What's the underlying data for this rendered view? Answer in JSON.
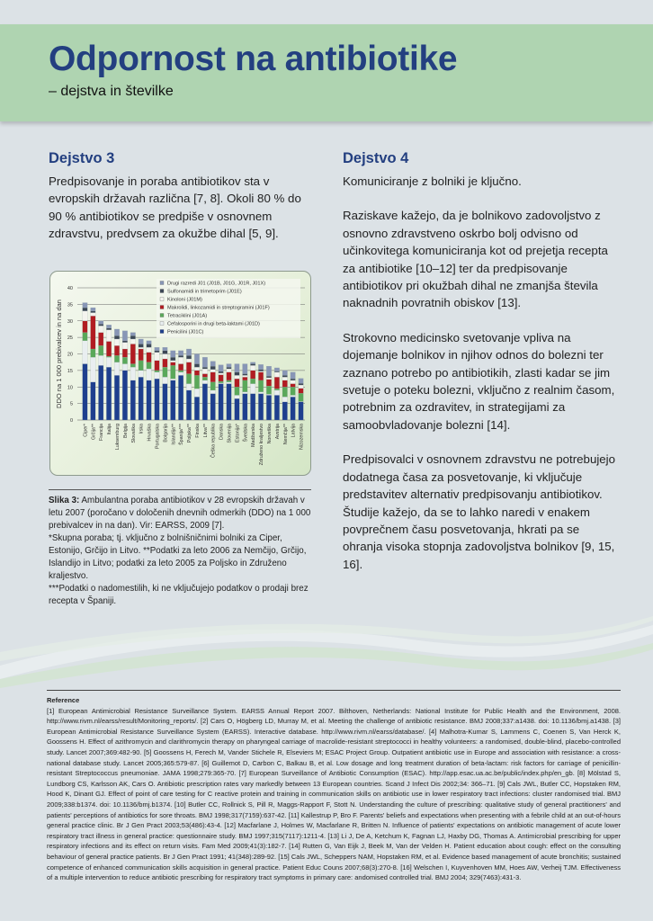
{
  "header": {
    "title": "Odpornost na antibiotike",
    "subtitle": "– dejstva in številke",
    "band_color": "#afd4b1",
    "title_color": "#233f80"
  },
  "left": {
    "heading": "Dejstvo 3",
    "paragraph": "Predpisovanje in poraba antibiotikov sta v evropskih državah različna [7, 8]. Okoli 80 % do 90 % antibiotikov se predpiše v osnovnem zdravstvu, predvsem za okužbe dihal [5, 9].",
    "caption": {
      "label": "Slika 3:",
      "text": " Ambulantna poraba antibiotikov v 28 evropskih državah v letu 2007 (poročano v določenih dnevnih odmerkih (DDO) na 1 000 prebivalcev in na dan). Vir: EARSS, 2009 [7].",
      "note1": "*Skupna poraba; tj. vključno z bolnišničnimi bolniki za Ciper, Estonijo, Grčijo in Litvo. **Podatki za leto 2006 za Nemčijo, Grčijo, Islandijo in Litvo; podatki za leto 2005 za Poljsko in Združeno kraljestvo.",
      "note2": "***Podatki o nadomestilih, ki ne vključujejo podatkov o prodaji brez recepta v Španiji."
    }
  },
  "right": {
    "heading": "Dejstvo 4",
    "paragraphs": [
      "Komuniciranje z bolniki je ključno.",
      "Raziskave kažejo, da je bolnikovo zadovoljstvo z osnovno zdravstveno oskrbo bolj odvisno od učinkovitega komuniciranja kot od prejetja recepta za antibiotike [10–12] ter da predpisovanje antibiotikov pri okužbah dihal ne zmanjša števila naknadnih povratnih obiskov [13].",
      "Strokovno medicinsko svetovanje vpliva na dojemanje bolnikov in njihov odnos do bolezni ter zaznano potrebo po antibiotikih, zlasti kadar se jim svetuje o poteku bolezni, vključno z realnim časom, potrebnim za ozdravitev, in strategijami za samoobvladovanje bolezni [14].",
      "Predpisovalci v osnovnem zdravstvu ne potrebujejo dodatnega časa za posvetovanje, ki vključuje predstavitev alternativ predpisovanju antibiotikov. Študije kažejo, da se to lahko naredi v enakem povprečnem času posvetovanja, hkrati pa se ohranja visoka stopnja zadovoljstva bolnikov [9, 15, 16]."
    ]
  },
  "references": {
    "heading": "Reference",
    "text": "[1] European Antimicrobial Resistance Surveillance System. EARSS Annual Report 2007. Bilthoven, Netherlands: National Institute for Public Health and the Environment, 2008. http://www.rivm.nl/earss/result/Monitoring_reports/. [2] Cars O, Högberg LD, Murray M, et al. Meeting the challenge of antibiotic resistance. BMJ 2008;337:a1438. doi: 10.1136/bmj.a1438. [3] European Antimicrobial Resistance Surveillance System (EARSS). Interactive database. http://www.rivm.nl/earss/database/. [4] Malhotra-Kumar S, Lammens C, Coenen S, Van Herck K, Goossens H. Effect of azithromycin and clarithromycin therapy on pharyngeal carriage of macrolide-resistant streptococci in healthy volunteers: a randomised, double-blind, placebo-controlled study. Lancet 2007;369:482-90. [5] Goossens H, Ferech M, Vander Stichele R, Elseviers M; ESAC Project Group. Outpatient antibiotic use in Europe and association with resistance: a cross-national database study. Lancet 2005;365:579-87. [6] Guillemot D, Carbon C, Balkau B, et al. Low dosage and long treatment duration of beta-lactam: risk factors for carriage of penicillin-resistant Streptococcus pneumoniae. JAMA 1998;279:365-70. [7] European Surveillance of Antibiotic Consumption (ESAC). http://app.esac.ua.ac.be/public/index.php/en_gb. [8] Mölstad S, Lundborg CS, Karlsson AK, Cars O. Antibiotic prescription rates vary markedly between 13 European countries. Scand J Infect Dis 2002;34: 366–71. [9] Cals JWL, Butler CC, Hopstaken RM, Hood K, Dinant GJ. Effect of point of care testing for C reactive protein and training in communication skills on antibiotic use in lower respiratory tract infections: cluster randomised trial. BMJ 2009;338:b1374. doi: 10.1136/bmj.b1374. [10] Butler CC, Rollnick S, Pill R, Maggs-Rapport F, Stott N. Understanding the culture of prescribing: qualitative study of general practitioners' and patients' perceptions of antibiotics for sore throats. BMJ 1998;317(7159):637-42. [11] Kallestrup P, Bro F. Parents' beliefs and expectations when presenting with a febrile child at an out-of-hours general practice clinic. Br J Gen Pract 2003;53(486):43-4. [12] Macfarlane J, Holmes W, Macfarlane R, Britten N. Influence of patients' expectations on antibiotic management of acute lower respiratory tract illness in general practice: questionnaire study. BMJ 1997;315(7117):1211-4. [13] Li J, De A, Ketchum K, Fagnan LJ, Haxby DG, Thomas A. Antimicrobial prescribing for upper respiratory infections and its effect on return visits. Fam Med 2009;41(3):182-7. [14] Rutten G, Van Eijk J, Beek M, Van der Velden H. Patient education about cough: effect on the consulting behaviour of general practice patients. Br J Gen Pract 1991; 41(348):289-92. [15] Cals JWL, Scheppers NAM, Hopstaken RM, et al. Evidence based management of acute bronchitis; sustained competence of enhanced communication skills acquisition in general practice. Patient Educ Couns 2007;68(3):270-8. [16] Welschen I, Kuyvenhoven MM, Hoes AW, Verheij TJM. Effectiveness of a multiple intervention to reduce antibiotic prescribing for respiratory tract symptoms in primary care: andomised controlled trial. BMJ 2004; 329(7463):431-3."
  },
  "chart_data": {
    "type": "bar",
    "stacked": true,
    "ylabel": "DDO na 1 000 prebivalcev in na dan",
    "ylim": [
      0,
      40
    ],
    "yticks": [
      0,
      5,
      10,
      15,
      20,
      25,
      30,
      35,
      40
    ],
    "grid": true,
    "legend_position": "top-right",
    "categories": [
      "Ciper*",
      "Grčija**",
      "Francija",
      "Italija",
      "Luksemburg",
      "Belgija",
      "Slovaška",
      "Irska",
      "Hrvaška",
      "Portugalska",
      "Bolgarija",
      "Islandija**",
      "Španija***",
      "Poljska**",
      "Finska",
      "Litva**",
      "Češka republika",
      "Danska",
      "Slovenija",
      "Estonija*",
      "Švedska",
      "Madžarska",
      "Združeno kraljestvo",
      "Norveška",
      "Avstrija",
      "Nemčija**",
      "Latvija",
      "Nizozemska"
    ],
    "series": [
      {
        "name": "Penicilini (J01C)",
        "color": "#1e3f8e",
        "values": [
          17,
          11.5,
          16.5,
          16,
          13.5,
          15,
          12,
          13,
          12,
          12.5,
          11,
          12,
          13.5,
          9,
          7,
          11,
          8,
          11,
          11,
          6.5,
          8,
          8,
          8,
          7.5,
          7.5,
          5.5,
          7,
          5.5
        ]
      },
      {
        "name": "Cefalosporini in drugi beta-laktami (J01D)",
        "color": "#e9eef0",
        "values": [
          7,
          7.5,
          3,
          3,
          4,
          2,
          4,
          2,
          3.5,
          2,
          2,
          0.5,
          1,
          2,
          2.5,
          1,
          1,
          0.2,
          0.5,
          1,
          0.5,
          3,
          0.5,
          0.3,
          1.5,
          1.5,
          0.5,
          0.1
        ]
      },
      {
        "name": "Tetraciklini (J01A)",
        "color": "#5aa85a",
        "values": [
          2.5,
          2.5,
          3,
          0.3,
          2,
          2,
          1,
          3,
          2,
          0.5,
          3,
          4,
          0.5,
          3,
          4,
          1,
          2.5,
          0.5,
          0.5,
          2.5,
          3.5,
          1.5,
          3.5,
          2.5,
          0.5,
          3,
          2.5,
          2.5
        ]
      },
      {
        "name": "Makrolidi, linkozamidi in streptogramini (J01F)",
        "color": "#b11c22",
        "values": [
          3.5,
          10,
          4,
          4.5,
          3,
          2.5,
          6,
          3.5,
          3,
          3,
          2.5,
          1,
          2,
          3.5,
          1.5,
          1,
          3,
          2,
          2.5,
          2.5,
          1,
          2.5,
          2.5,
          2,
          3.5,
          2,
          1,
          1.5
        ]
      },
      {
        "name": "Kinoloni (J01M)",
        "color": "#f4f4ef",
        "values": [
          3,
          1,
          2,
          3.5,
          2,
          2,
          1.5,
          0.5,
          1.5,
          2.5,
          1.5,
          0.5,
          2,
          1,
          1,
          1.5,
          0.8,
          0.5,
          1,
          1,
          0.5,
          1.5,
          0.3,
          0.5,
          1.5,
          1,
          1,
          1
        ]
      },
      {
        "name": "Sulfonamidi in trimetoprim (J01E)",
        "color": "#3c4756",
        "values": [
          1,
          0.5,
          0.5,
          0.5,
          1,
          0.5,
          1,
          1,
          1,
          0.5,
          1,
          1,
          0.5,
          1,
          1,
          0.5,
          1,
          0.5,
          0.5,
          1,
          0.5,
          0.5,
          0.5,
          0.5,
          0.3,
          0.5,
          0.5,
          0.5
        ]
      },
      {
        "name": "Drugi razredi J01 (J01B, J01G, J01R, J01X)",
        "color": "#8896b6",
        "values": [
          1.5,
          1,
          1,
          1,
          2,
          3,
          1,
          1.5,
          1,
          1,
          1,
          2,
          1.5,
          2,
          3,
          3,
          1.5,
          2,
          1,
          2.5,
          3,
          0.5,
          1.5,
          3,
          1,
          1.5,
          2,
          1.5
        ]
      }
    ]
  }
}
